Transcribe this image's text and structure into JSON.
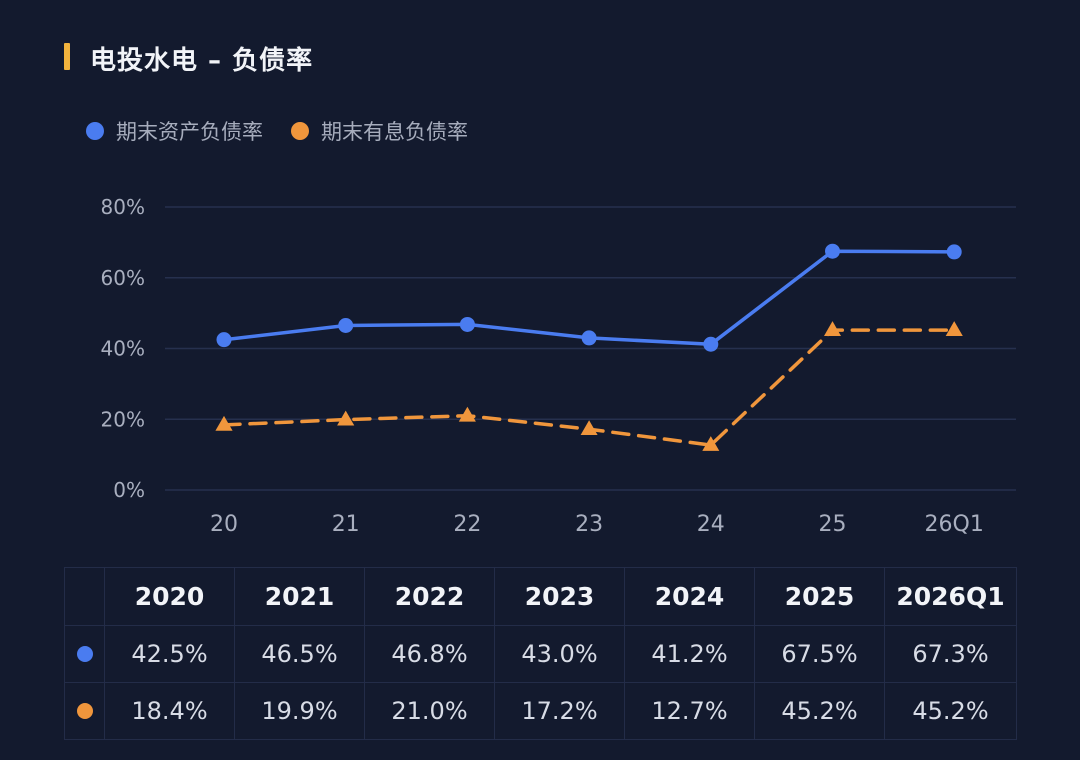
{
  "title": "电投水电 – 负债率",
  "colors": {
    "accent_bar": "#f2b33d",
    "series_blue": "#4a7cf0",
    "series_orange": "#f0963c",
    "grid": "#26304e",
    "background": "#131a2e"
  },
  "legend": [
    {
      "label": "期末资产负债率",
      "icon": "circle-marker"
    },
    {
      "label": "期末有息负债率",
      "icon": "triangle-marker"
    }
  ],
  "chart_data": {
    "type": "line",
    "title": "电投水电 – 负债率",
    "x": [
      "20",
      "21",
      "22",
      "23",
      "24",
      "25",
      "26Q1"
    ],
    "yticks": [
      "0%",
      "20%",
      "40%",
      "60%",
      "80%"
    ],
    "ylim": [
      0,
      80
    ],
    "grid": true,
    "legend_position": "top-left",
    "series": [
      {
        "name": "期末资产负债率",
        "values": [
          42.5,
          46.5,
          46.8,
          43.0,
          41.2,
          67.5,
          67.3
        ],
        "line_style": "solid",
        "marker": "circle"
      },
      {
        "name": "期末有息负债率",
        "values": [
          18.4,
          19.9,
          21.0,
          17.2,
          12.7,
          45.2,
          45.2
        ],
        "line_style": "dashed",
        "marker": "triangle"
      }
    ]
  },
  "table": {
    "headers": [
      "2020",
      "2021",
      "2022",
      "2023",
      "2024",
      "2025",
      "2026Q1"
    ],
    "rows": [
      {
        "marker": "blue-dot",
        "cells": [
          "42.5%",
          "46.5%",
          "46.8%",
          "43.0%",
          "41.2%",
          "67.5%",
          "67.3%"
        ]
      },
      {
        "marker": "orange-dot",
        "cells": [
          "18.4%",
          "19.9%",
          "21.0%",
          "17.2%",
          "12.7%",
          "45.2%",
          "45.2%"
        ]
      }
    ]
  }
}
